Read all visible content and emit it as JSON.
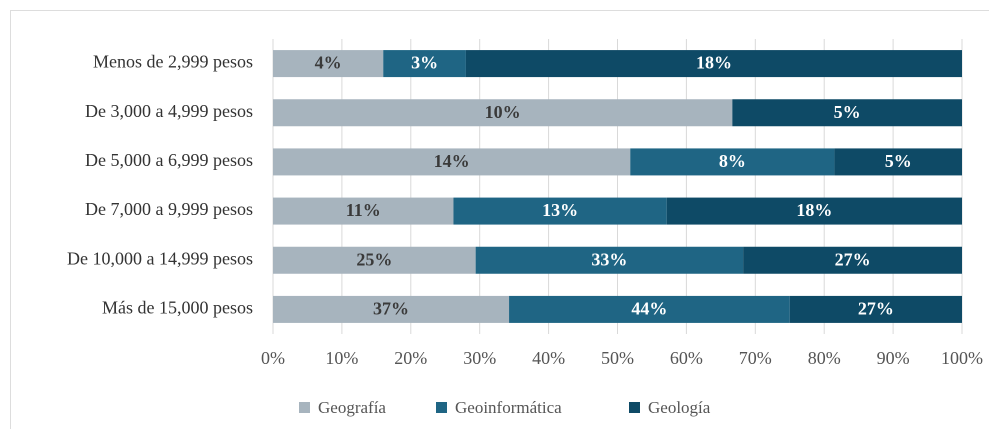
{
  "chart_data": {
    "type": "bar",
    "orientation": "horizontal",
    "stack": "percent",
    "categories": [
      "Menos de 2,999 pesos",
      "De 3,000 a 4,999 pesos",
      "De 5,000 a 6,999 pesos",
      "De 7,000 a 9,999 pesos",
      "De 10,000 a 14,999 pesos",
      "Más de 15,000 pesos"
    ],
    "series": [
      {
        "name": "Geografía",
        "color": "#a7b4be",
        "values": [
          4,
          10,
          14,
          11,
          25,
          37
        ],
        "value_labels": [
          "4%",
          "10%",
          "14%",
          "11%",
          "25%",
          "37%"
        ]
      },
      {
        "name": "Geoinformática",
        "color": "#1f6584",
        "values": [
          3,
          null,
          8,
          13,
          33,
          44
        ],
        "value_labels": [
          "3%",
          null,
          "8%",
          "13%",
          "33%",
          "44%"
        ]
      },
      {
        "name": "Geología",
        "color": "#0e4a66",
        "values": [
          18,
          5,
          5,
          18,
          27,
          27
        ],
        "value_labels": [
          "18%",
          "5%",
          "5%",
          "18%",
          "27%",
          "27%"
        ]
      }
    ],
    "xlim": [
      0,
      100
    ],
    "xticks": [
      {
        "value": 0,
        "label": "0%"
      },
      {
        "value": 10,
        "label": "10%"
      },
      {
        "value": 20,
        "label": "20%"
      },
      {
        "value": 30,
        "label": "30%"
      },
      {
        "value": 40,
        "label": "40%"
      },
      {
        "value": 50,
        "label": "50%"
      },
      {
        "value": 60,
        "label": "60%"
      },
      {
        "value": 70,
        "label": "70%"
      },
      {
        "value": 80,
        "label": "80%"
      },
      {
        "value": 90,
        "label": "90%"
      },
      {
        "value": 100,
        "label": "100%"
      }
    ],
    "grid": true,
    "legend": "bottom"
  }
}
